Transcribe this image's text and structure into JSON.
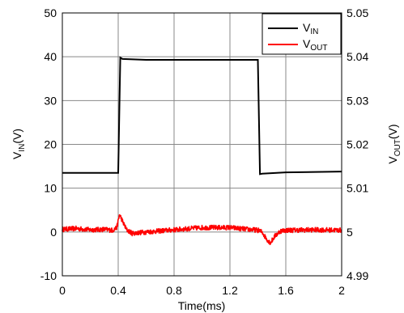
{
  "chart_data": {
    "type": "line",
    "xlabel": "Time(ms)",
    "ylabel_left": {
      "main": "V",
      "sub": "IN",
      "unit": "(V)"
    },
    "ylabel_right": {
      "main": "V",
      "sub": "OUT",
      "unit": "(V)"
    },
    "x_ticks": [
      "0",
      "0.4",
      "0.8",
      "1.2",
      "1.6",
      "2"
    ],
    "y_left_ticks": [
      "-10",
      "0",
      "10",
      "20",
      "30",
      "40",
      "50"
    ],
    "y_right_ticks": [
      "4.99",
      "5",
      "5.01",
      "5.02",
      "5.03",
      "5.04",
      "5.05"
    ],
    "xlim": [
      0,
      2
    ],
    "ylim_left": [
      -10,
      50
    ],
    "ylim_right": [
      4.99,
      5.05
    ],
    "grid": true,
    "legend_position": "top-right",
    "series": [
      {
        "name": {
          "main": "V",
          "sub": "IN"
        },
        "color": "#000000",
        "axis": "left",
        "x": [
          0,
          0.4,
          0.415,
          0.43,
          0.6,
          1.0,
          1.4,
          1.415,
          1.43,
          1.6,
          2.0
        ],
        "y": [
          13.5,
          13.5,
          39.8,
          39.5,
          39.3,
          39.3,
          39.3,
          13.2,
          13.3,
          13.6,
          13.8
        ]
      },
      {
        "name": {
          "main": "V",
          "sub": "OUT"
        },
        "color": "#ff0000",
        "axis": "right",
        "x": [
          0,
          0.1,
          0.2,
          0.3,
          0.36,
          0.39,
          0.41,
          0.43,
          0.46,
          0.5,
          0.6,
          0.8,
          1.0,
          1.2,
          1.4,
          1.43,
          1.46,
          1.49,
          1.52,
          1.56,
          1.6,
          1.8,
          2.0
        ],
        "y": [
          5.0006,
          5.0008,
          5.0005,
          5.0006,
          5.0004,
          5.001,
          5.004,
          5.0025,
          5.0005,
          4.9997,
          5.0,
          5.0005,
          5.001,
          5.001,
          5.0004,
          5.0,
          4.9985,
          4.9975,
          4.999,
          5.0002,
          5.0004,
          5.0005,
          5.0004
        ]
      }
    ]
  }
}
